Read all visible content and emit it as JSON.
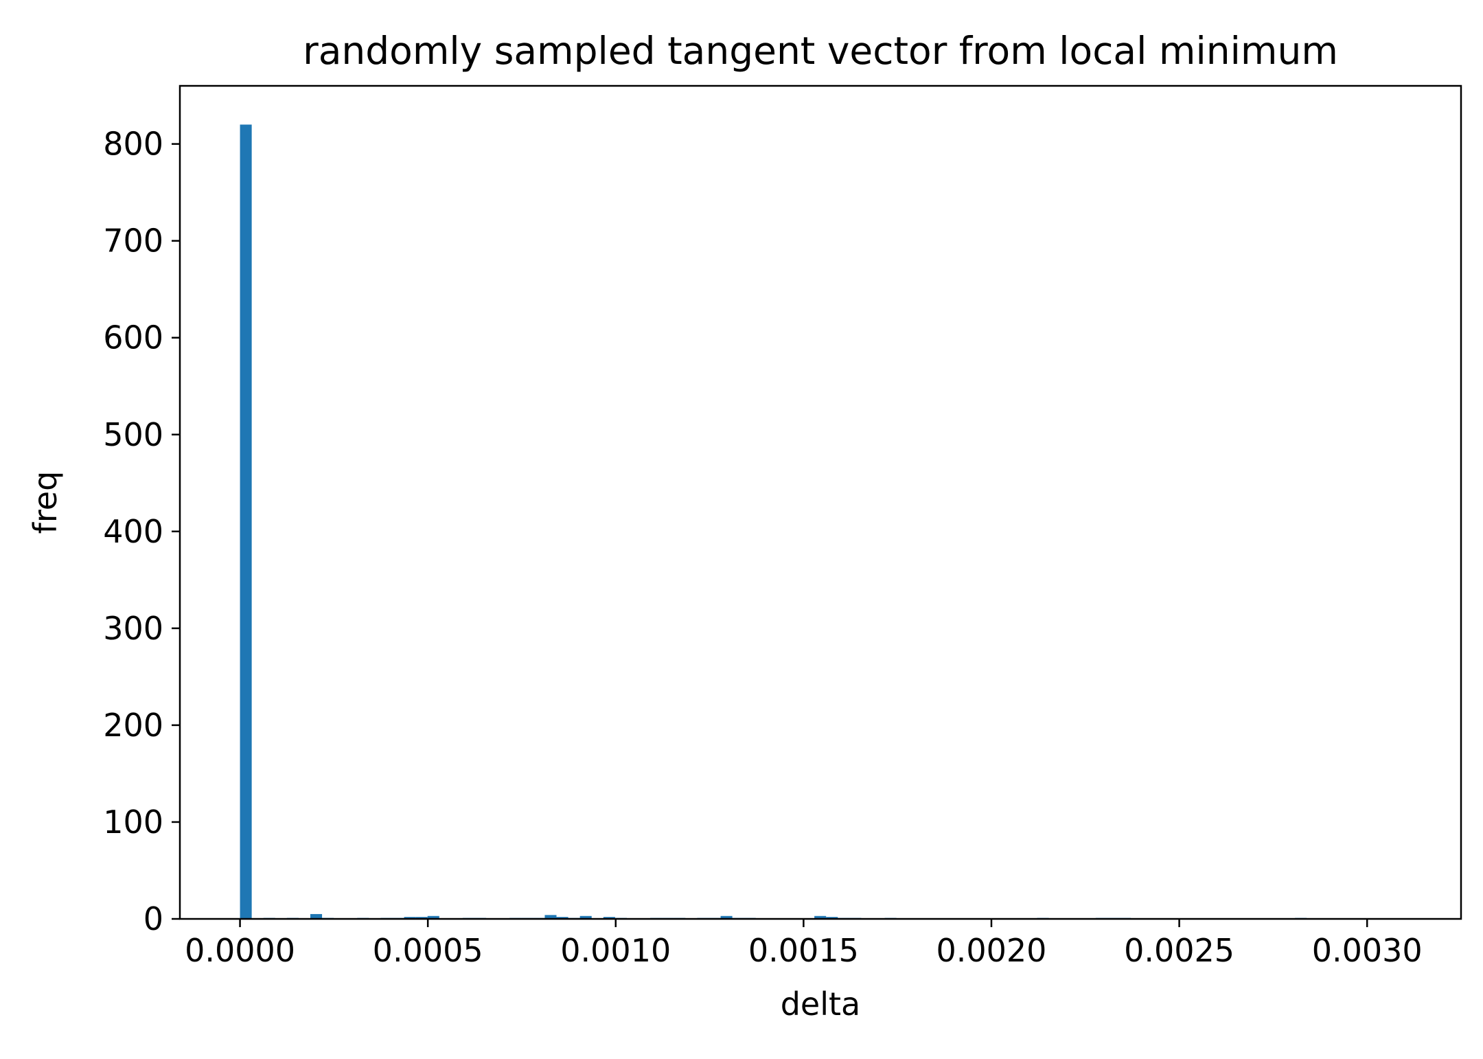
{
  "chart_data": {
    "type": "bar",
    "title": "randomly sampled tangent vector from local minimum",
    "xlabel": "delta",
    "ylabel": "freq",
    "xlim": [
      -0.00016,
      0.00325
    ],
    "ylim": [
      0,
      860
    ],
    "xticks": [
      0.0,
      0.0005,
      0.001,
      0.0015,
      0.002,
      0.0025,
      0.003
    ],
    "xtick_labels": [
      "0.0000",
      "0.0005",
      "0.0010",
      "0.0015",
      "0.0020",
      "0.0025",
      "0.0030"
    ],
    "yticks": [
      0,
      100,
      200,
      300,
      400,
      500,
      600,
      700,
      800
    ],
    "ytick_labels": [
      "0",
      "100",
      "200",
      "300",
      "400",
      "500",
      "600",
      "700",
      "800"
    ],
    "bin_start": 0.0,
    "bin_width": 3.12e-05,
    "values": [
      820,
      0,
      1,
      0,
      1,
      0,
      5,
      1,
      0,
      0,
      1,
      0,
      1,
      1,
      2,
      2,
      3,
      0,
      0,
      1,
      1,
      0,
      0,
      1,
      1,
      1,
      4,
      2,
      1,
      3,
      0,
      2,
      1,
      0,
      0,
      1,
      1,
      1,
      0,
      1,
      1,
      3,
      1,
      1,
      0,
      0,
      0,
      0,
      0,
      3,
      2,
      1,
      1,
      0,
      0,
      1,
      0,
      0,
      0,
      0,
      0,
      0,
      0,
      0,
      0,
      0,
      0,
      0,
      1,
      0,
      0,
      0,
      0,
      1,
      1,
      1,
      0,
      0,
      0,
      0,
      0,
      0,
      0,
      0,
      0,
      0,
      0,
      0,
      0,
      0,
      1,
      0,
      0,
      0,
      0,
      0,
      0,
      0,
      0,
      0,
      0,
      0
    ],
    "color": "#1f77b4",
    "grid": false,
    "legend": "none"
  }
}
